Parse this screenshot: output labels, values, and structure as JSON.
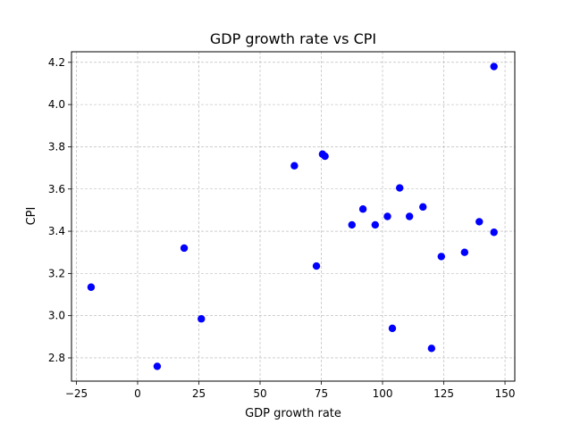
{
  "chart_data": {
    "type": "scatter",
    "title": "GDP growth rate vs CPI",
    "xlabel": "GDP growth rate",
    "ylabel": "CPI",
    "xlim": [
      -27,
      154
    ],
    "ylim": [
      2.69,
      4.25
    ],
    "xticks": [
      -25,
      0,
      25,
      50,
      75,
      100,
      125,
      150
    ],
    "xtick_labels": [
      "−25",
      "0",
      "25",
      "50",
      "75",
      "100",
      "125",
      "150"
    ],
    "yticks": [
      2.8,
      3.0,
      3.2,
      3.4,
      3.6,
      3.8,
      4.0,
      4.2
    ],
    "ytick_labels": [
      "2.8",
      "3.0",
      "3.2",
      "3.4",
      "3.6",
      "3.8",
      "4.0",
      "4.2"
    ],
    "grid": true,
    "marker_color": "#0000ff",
    "points": [
      {
        "x": -19,
        "y": 3.135
      },
      {
        "x": 8,
        "y": 2.76
      },
      {
        "x": 19,
        "y": 3.32
      },
      {
        "x": 26,
        "y": 2.985
      },
      {
        "x": 64,
        "y": 3.71
      },
      {
        "x": 73,
        "y": 3.235
      },
      {
        "x": 75.5,
        "y": 3.765
      },
      {
        "x": 76.5,
        "y": 3.755
      },
      {
        "x": 87.5,
        "y": 3.43
      },
      {
        "x": 92,
        "y": 3.505
      },
      {
        "x": 97,
        "y": 3.43
      },
      {
        "x": 102,
        "y": 3.47
      },
      {
        "x": 104,
        "y": 2.94
      },
      {
        "x": 107,
        "y": 3.605
      },
      {
        "x": 111,
        "y": 3.47
      },
      {
        "x": 116.5,
        "y": 3.515
      },
      {
        "x": 120,
        "y": 2.845
      },
      {
        "x": 124,
        "y": 3.28
      },
      {
        "x": 133.5,
        "y": 3.3
      },
      {
        "x": 139.5,
        "y": 3.445
      },
      {
        "x": 145.5,
        "y": 3.395
      },
      {
        "x": 145.5,
        "y": 4.18
      }
    ]
  }
}
